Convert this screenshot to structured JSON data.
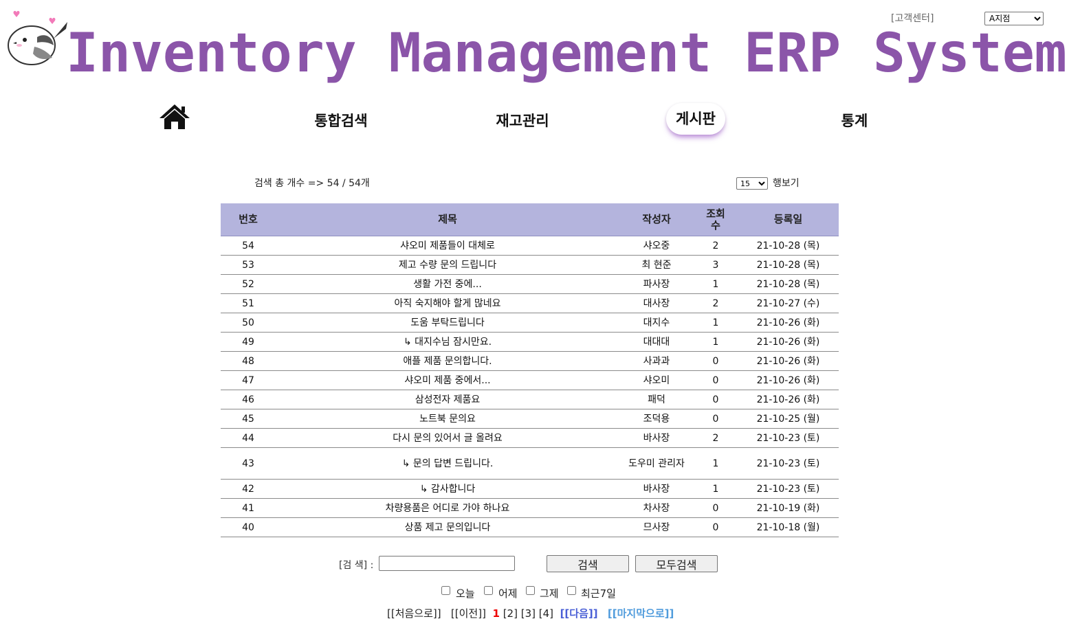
{
  "header": {
    "title": "Inventory Management ERP System",
    "customer_center": "[고객센터]",
    "branch_selected": "A지점",
    "brand_color": "#8b55a9"
  },
  "nav": {
    "home_icon": "home-icon",
    "items": [
      "통합검색",
      "재고관리",
      "게시판",
      "통계"
    ],
    "active": "게시판"
  },
  "board": {
    "result_count": "검색 총 개수 => 54 / 54개",
    "rows_per_page": "15",
    "rows_label": "행보기",
    "columns": [
      "번호",
      "제목",
      "작성자",
      "조회수",
      "등록일"
    ],
    "header_color": "#b4b4dd",
    "rows": [
      {
        "no": "54",
        "title": "샤오미 제품들이 대체로",
        "author": "샤오중",
        "views": "2",
        "date": "21-10-28 (목)"
      },
      {
        "no": "53",
        "title": "제고 수량 문의 드립니다",
        "author": "최 현준",
        "views": "3",
        "date": "21-10-28 (목)"
      },
      {
        "no": "52",
        "title": "생활 가전 중에...",
        "author": "파사장",
        "views": "1",
        "date": "21-10-28 (목)"
      },
      {
        "no": "51",
        "title": "아직 숙지해야 할게 많네요",
        "author": "대사장",
        "views": "2",
        "date": "21-10-27 (수)"
      },
      {
        "no": "50",
        "title": "도움 부탁드립니다",
        "author": "대지수",
        "views": "1",
        "date": "21-10-26 (화)"
      },
      {
        "no": "49",
        "title": "↳ 대지수님 잠시만요.",
        "author": "대대대",
        "views": "1",
        "date": "21-10-26 (화)"
      },
      {
        "no": "48",
        "title": "애플 제품 문의합니다.",
        "author": "사과과",
        "views": "0",
        "date": "21-10-26 (화)"
      },
      {
        "no": "47",
        "title": "샤오미 제품 중에서...",
        "author": "샤오미",
        "views": "0",
        "date": "21-10-26 (화)"
      },
      {
        "no": "46",
        "title": "삼성전자 제품요",
        "author": "패덕",
        "views": "0",
        "date": "21-10-26 (화)"
      },
      {
        "no": "45",
        "title": "노트북 문의요",
        "author": "조덕용",
        "views": "0",
        "date": "21-10-25 (월)"
      },
      {
        "no": "44",
        "title": "다시 문의 있어서 글 올려요",
        "author": "바사장",
        "views": "2",
        "date": "21-10-23 (토)"
      },
      {
        "no": "43",
        "title": "↳ 문의 답변 드립니다.",
        "author": "도우미 관리자",
        "views": "1",
        "date": "21-10-23 (토)"
      },
      {
        "no": "42",
        "title": "↳ 감사합니다",
        "author": "바사장",
        "views": "1",
        "date": "21-10-23 (토)"
      },
      {
        "no": "41",
        "title": "차량용품은 어디로 가야 하나요",
        "author": "차사장",
        "views": "0",
        "date": "21-10-19 (화)"
      },
      {
        "no": "40",
        "title": "상품 제고 문의입니다",
        "author": "므사장",
        "views": "0",
        "date": "21-10-18 (월)"
      }
    ]
  },
  "search": {
    "label": "[검 색] :",
    "value": "",
    "search_button": "검색",
    "search_all_button": "모두검색"
  },
  "date_filters": [
    {
      "label": "오늘",
      "checked": false
    },
    {
      "label": "어제",
      "checked": false
    },
    {
      "label": "그제",
      "checked": false
    },
    {
      "label": "최근7일",
      "checked": false
    }
  ],
  "pagination": {
    "first": "[[처음으로]]",
    "prev": "[[이전]]",
    "current": "1",
    "pages": [
      "[2]",
      "[3]",
      "[4]"
    ],
    "next": "[[다음]]",
    "last": "[[마지막으로]]"
  }
}
